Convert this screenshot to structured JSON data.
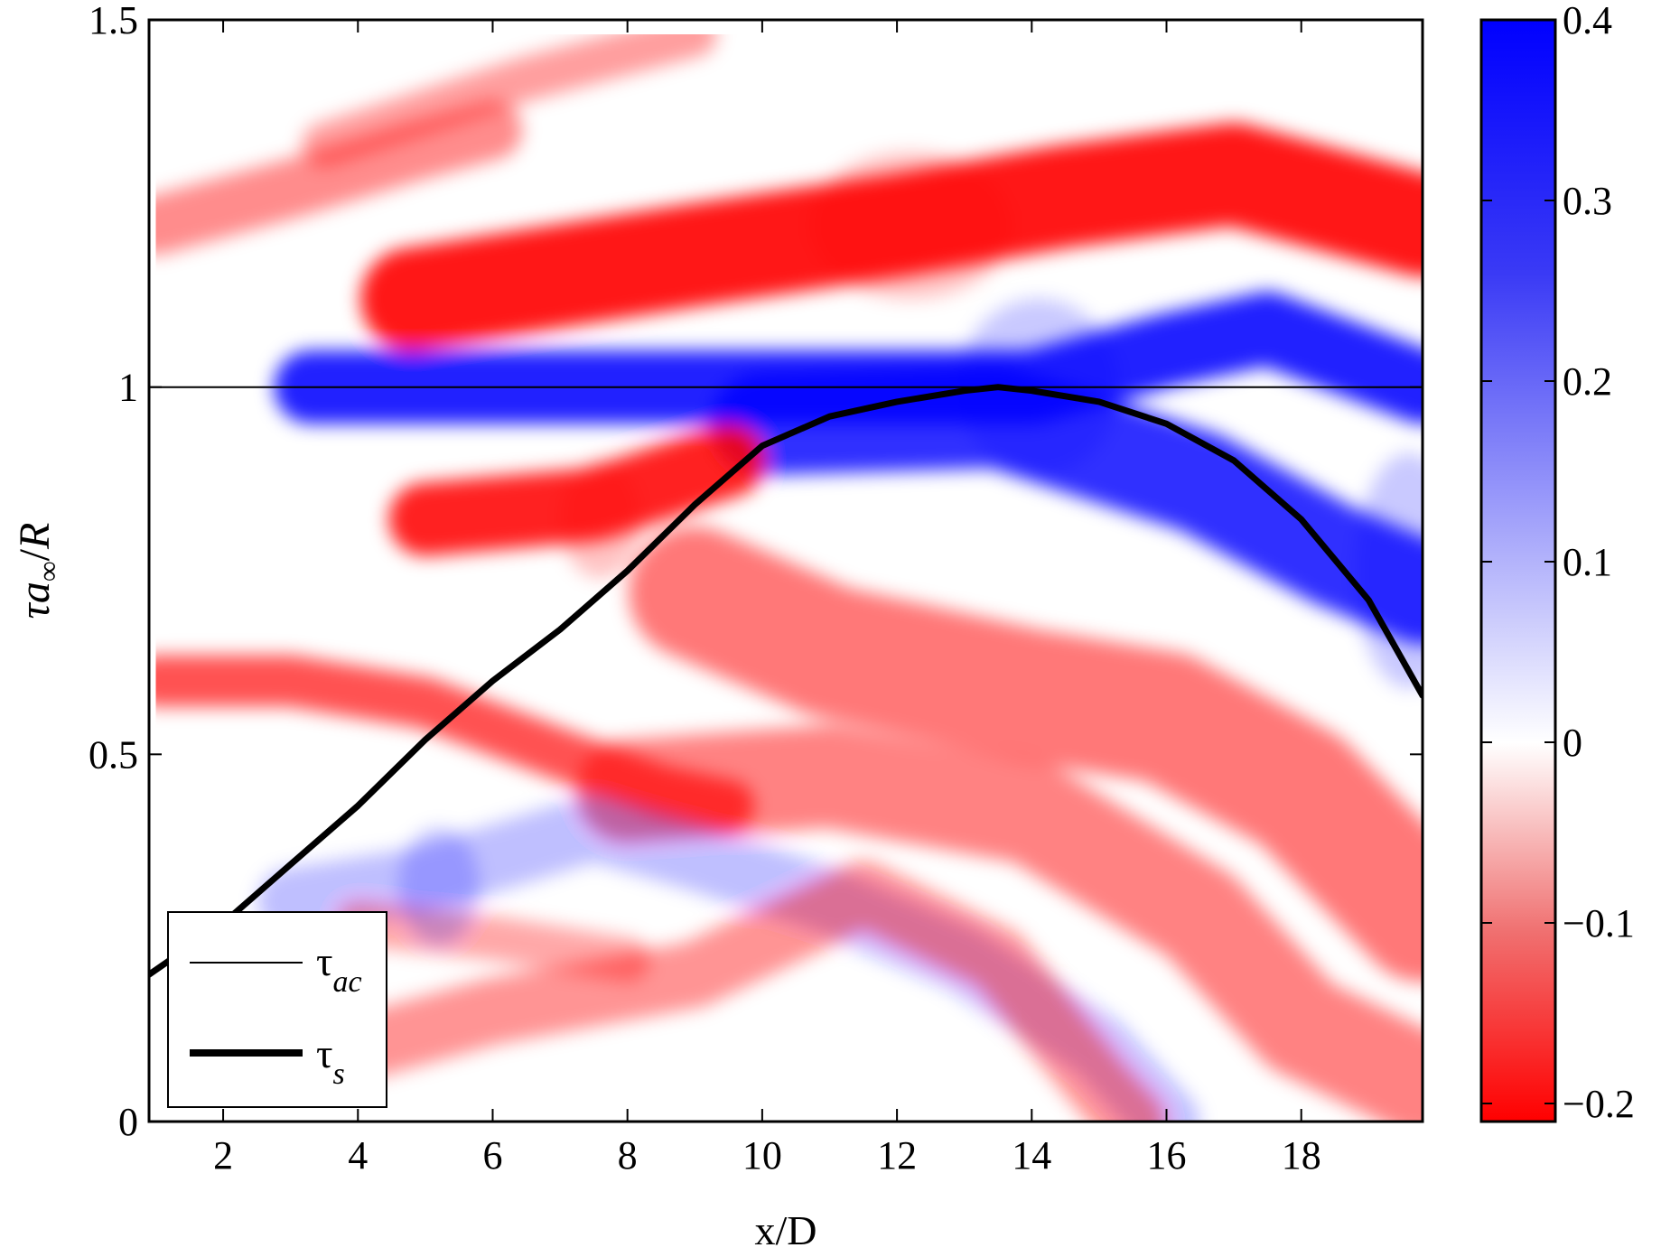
{
  "chart_data": {
    "type": "heatmap",
    "title": "",
    "xlabel": "x/D",
    "ylabel_parts": {
      "tau": "τ",
      "a": "a",
      "sub": "∞",
      "slash": "/",
      "R": "R"
    },
    "xlim": [
      0.9,
      19.8
    ],
    "ylim": [
      0,
      1.5
    ],
    "x_ticks": [
      {
        "v": 2,
        "label": "2"
      },
      {
        "v": 4,
        "label": "4"
      },
      {
        "v": 6,
        "label": "6"
      },
      {
        "v": 8,
        "label": "8"
      },
      {
        "v": 10,
        "label": "10"
      },
      {
        "v": 12,
        "label": "12"
      },
      {
        "v": 14,
        "label": "14"
      },
      {
        "v": 16,
        "label": "16"
      },
      {
        "v": 18,
        "label": "18"
      }
    ],
    "y_ticks": [
      {
        "v": 0,
        "label": "0"
      },
      {
        "v": 0.5,
        "label": "0.5"
      },
      {
        "v": 1,
        "label": "1"
      },
      {
        "v": 1.5,
        "label": "1.5"
      }
    ],
    "grid": false,
    "colorscale": {
      "min": -0.21,
      "max": 0.4,
      "negative_color": "#ff0000",
      "zero_color": "#ffffff",
      "positive_color": "#0000ff",
      "ticks": [
        {
          "v": 0.4,
          "label": "0.4"
        },
        {
          "v": 0.3,
          "label": "0.3"
        },
        {
          "v": 0.2,
          "label": "0.2"
        },
        {
          "v": 0.1,
          "label": "0.1"
        },
        {
          "v": 0,
          "label": "0"
        },
        {
          "v": -0.1,
          "label": "−0.1"
        },
        {
          "v": -0.2,
          "label": "−0.2"
        }
      ]
    },
    "features": [
      {
        "kind": "ridge",
        "pts": [
          [
            3.3,
            1.0
          ],
          [
            7,
            1.0
          ],
          [
            10,
            1.0
          ],
          [
            14,
            1.0
          ],
          [
            16,
            1.05
          ],
          [
            17.5,
            1.08
          ],
          [
            19.8,
            1.0
          ]
        ],
        "amp": 0.36,
        "width": 0.05
      },
      {
        "kind": "ridge",
        "pts": [
          [
            10,
            0.95
          ],
          [
            13.5,
            0.96
          ],
          [
            16.5,
            0.87
          ],
          [
            18.5,
            0.77
          ],
          [
            19.8,
            0.72
          ]
        ],
        "amp": 0.33,
        "width": 0.07
      },
      {
        "kind": "ridge",
        "pts": [
          [
            4.8,
            1.12
          ],
          [
            9,
            1.18
          ],
          [
            12,
            1.22
          ],
          [
            14.5,
            1.26
          ],
          [
            17,
            1.29
          ],
          [
            19.8,
            1.22
          ]
        ],
        "amp": -0.2,
        "width": 0.07
      },
      {
        "kind": "ridge",
        "pts": [
          [
            1.0,
            1.22
          ],
          [
            3,
            1.27
          ],
          [
            4.8,
            1.32
          ],
          [
            6,
            1.35
          ]
        ],
        "amp": -0.08,
        "width": 0.04
      },
      {
        "kind": "ridge",
        "pts": [
          [
            3.5,
            1.33
          ],
          [
            6.5,
            1.42
          ],
          [
            9,
            1.48
          ]
        ],
        "amp": -0.06,
        "width": 0.03
      },
      {
        "kind": "ridge",
        "pts": [
          [
            5,
            0.82
          ],
          [
            7.5,
            0.84
          ],
          [
            9.5,
            0.9
          ]
        ],
        "amp": -0.19,
        "width": 0.05
      },
      {
        "kind": "ridge",
        "pts": [
          [
            9,
            0.72
          ],
          [
            11,
            0.64
          ],
          [
            14,
            0.58
          ],
          [
            16,
            0.55
          ],
          [
            18,
            0.45
          ],
          [
            19.8,
            0.28
          ]
        ],
        "amp": -0.1,
        "width": 0.09
      },
      {
        "kind": "ridge",
        "pts": [
          [
            1.0,
            0.6
          ],
          [
            3,
            0.6
          ],
          [
            5,
            0.57
          ],
          [
            7,
            0.5
          ],
          [
            8.5,
            0.45
          ],
          [
            9.5,
            0.43
          ]
        ],
        "amp": -0.14,
        "width": 0.035
      },
      {
        "kind": "ridge",
        "pts": [
          [
            8,
            0.45
          ],
          [
            11,
            0.47
          ],
          [
            14,
            0.42
          ],
          [
            16.5,
            0.28
          ],
          [
            18,
            0.13
          ],
          [
            19.8,
            0.05
          ]
        ],
        "amp": -0.09,
        "width": 0.07
      },
      {
        "kind": "ridge",
        "pts": [
          [
            3,
            0.3
          ],
          [
            5,
            0.33
          ],
          [
            7.5,
            0.4
          ],
          [
            9,
            0.36
          ],
          [
            11,
            0.3
          ],
          [
            13,
            0.22
          ],
          [
            15,
            0.1
          ],
          [
            16,
            0.0
          ]
        ],
        "amp": 0.05,
        "width": 0.045
      },
      {
        "kind": "ridge",
        "pts": [
          [
            4,
            0.1
          ],
          [
            6,
            0.15
          ],
          [
            9,
            0.2
          ],
          [
            11.5,
            0.31
          ],
          [
            13.5,
            0.22
          ],
          [
            15,
            0.05
          ],
          [
            15.5,
            0.0
          ]
        ],
        "amp": -0.07,
        "width": 0.045
      },
      {
        "kind": "ridge",
        "pts": [
          [
            4,
            0.27
          ],
          [
            6,
            0.25
          ],
          [
            8,
            0.22
          ]
        ],
        "amp": -0.05,
        "width": 0.03
      },
      {
        "kind": "blob",
        "x": 5.2,
        "y": 0.32,
        "sx": 0.6,
        "sy": 0.04,
        "amp": 0.06
      },
      {
        "kind": "blob",
        "x": 14.1,
        "y": 1.0,
        "sx": 1.2,
        "sy": 0.06,
        "amp": 0.06
      },
      {
        "kind": "blob",
        "x": 12.2,
        "y": 1.22,
        "sx": 1.5,
        "sy": 0.05,
        "amp": -0.04
      },
      {
        "kind": "blob",
        "x": 7.6,
        "y": 0.82,
        "sx": 0.6,
        "sy": 0.04,
        "amp": -0.04
      },
      {
        "kind": "blob",
        "x": 19.6,
        "y": 0.75,
        "sx": 0.8,
        "sy": 0.08,
        "amp": 0.06
      }
    ],
    "series": [
      {
        "name": "τ",
        "name_sub": "ac",
        "style": "thin",
        "x": [
          0.9,
          19.8
        ],
        "y": [
          1.0,
          1.0
        ]
      },
      {
        "name": "τ",
        "name_sub": "s",
        "style": "thick",
        "x": [
          0.9,
          2,
          3,
          4,
          5,
          6,
          7,
          8,
          9,
          10,
          11,
          12,
          13,
          13.5,
          14,
          15,
          16,
          17,
          18,
          19,
          19.8
        ],
        "y": [
          0.2,
          0.27,
          0.35,
          0.43,
          0.52,
          0.6,
          0.67,
          0.75,
          0.84,
          0.92,
          0.96,
          0.98,
          0.995,
          1.0,
          0.995,
          0.98,
          0.95,
          0.9,
          0.82,
          0.71,
          0.58
        ]
      }
    ],
    "legend": {
      "placement": "lower-left"
    }
  }
}
